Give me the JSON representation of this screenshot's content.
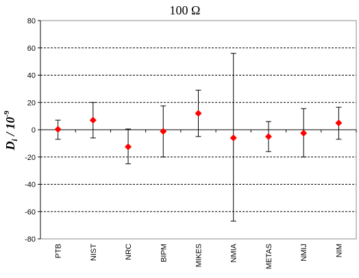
{
  "chart_data": {
    "type": "scatter",
    "title": "100 Ω",
    "ylabel": {
      "main": "D",
      "subscript": "i",
      "rest": " / 10",
      "superscript": "-9"
    },
    "ylim": [
      -80,
      80
    ],
    "yticks": [
      80,
      60,
      40,
      20,
      0,
      -20,
      -40,
      -60,
      -80
    ],
    "grid": true,
    "categories": [
      "PTB",
      "NIST",
      "NRC",
      "BIPM",
      "MIKES",
      "NMIA",
      "METAS",
      "NMIJ",
      "NIM"
    ],
    "series": [
      {
        "values": [
          0.3,
          7.0,
          -12.5,
          -1.2,
          12.0,
          -6.0,
          -5.0,
          -2.5,
          5.0
        ],
        "error_low": [
          -7.0,
          -6.0,
          -25.0,
          -20.0,
          -5.0,
          -67.0,
          -16.0,
          -20.0,
          -7.0
        ],
        "error_high": [
          7.0,
          20.0,
          0.5,
          17.5,
          29.0,
          56.0,
          6.0,
          15.5,
          16.5
        ],
        "marker_color": "#ff0000",
        "error_color": "#000000"
      }
    ]
  }
}
